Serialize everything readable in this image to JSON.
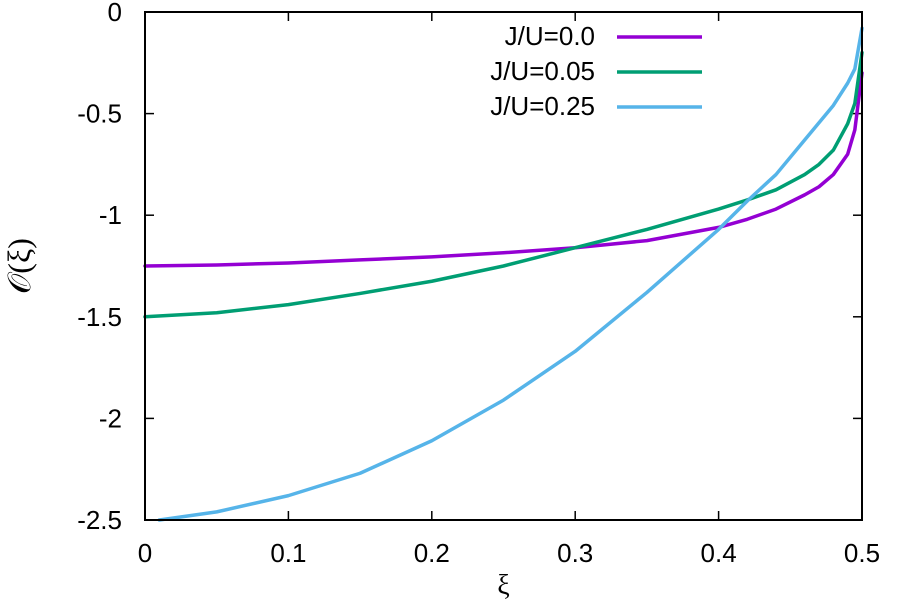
{
  "chart_data": {
    "type": "line",
    "title": "",
    "xlabel": "ξ",
    "ylabel": "𝒪(ξ)",
    "xlim": [
      0,
      0.5
    ],
    "ylim": [
      -2.5,
      0
    ],
    "xticks": [
      0,
      0.1,
      0.2,
      0.3,
      0.4,
      0.5
    ],
    "xtick_labels": [
      "0",
      "0.1",
      "0.2",
      "0.3",
      "0.4",
      "0.5"
    ],
    "yticks": [
      0,
      -0.5,
      -1,
      -1.5,
      -2,
      -2.5
    ],
    "ytick_labels": [
      "0",
      "-0.5",
      "-1",
      "-1.5",
      "-2",
      "-2.5"
    ],
    "grid": false,
    "legend_position": "top-right",
    "series": [
      {
        "name": "J/U=0.0",
        "color": "#9400d3",
        "x": [
          0,
          0.05,
          0.1,
          0.15,
          0.2,
          0.25,
          0.3,
          0.35,
          0.4,
          0.42,
          0.44,
          0.46,
          0.47,
          0.48,
          0.49,
          0.495,
          0.5
        ],
        "y": [
          -1.25,
          -1.245,
          -1.235,
          -1.22,
          -1.205,
          -1.185,
          -1.16,
          -1.125,
          -1.06,
          -1.02,
          -0.97,
          -0.9,
          -0.86,
          -0.8,
          -0.7,
          -0.58,
          -0.3
        ]
      },
      {
        "name": "J/U=0.05",
        "color": "#009e73",
        "x": [
          0,
          0.05,
          0.1,
          0.15,
          0.2,
          0.25,
          0.3,
          0.35,
          0.4,
          0.42,
          0.44,
          0.46,
          0.47,
          0.48,
          0.49,
          0.495,
          0.5
        ],
        "y": [
          -1.5,
          -1.48,
          -1.44,
          -1.385,
          -1.325,
          -1.25,
          -1.16,
          -1.07,
          -0.97,
          -0.925,
          -0.875,
          -0.8,
          -0.75,
          -0.68,
          -0.55,
          -0.45,
          -0.2
        ]
      },
      {
        "name": "J/U=0.25",
        "color": "#56b4e9",
        "x": [
          0.01,
          0.05,
          0.1,
          0.15,
          0.2,
          0.25,
          0.3,
          0.35,
          0.4,
          0.42,
          0.44,
          0.46,
          0.48,
          0.49,
          0.495,
          0.5
        ],
        "y": [
          -2.5,
          -2.46,
          -2.38,
          -2.27,
          -2.11,
          -1.91,
          -1.67,
          -1.38,
          -1.07,
          -0.93,
          -0.8,
          -0.63,
          -0.46,
          -0.35,
          -0.28,
          -0.08
        ]
      }
    ]
  }
}
